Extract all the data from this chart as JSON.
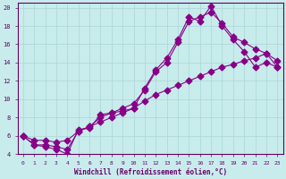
{
  "xlabel": "Windchill (Refroidissement éolien,°C)",
  "bg_color": "#c8ecec",
  "line_color": "#880088",
  "grid_color": "#b0d8d8",
  "xlim": [
    -0.5,
    23.5
  ],
  "ylim": [
    4,
    20.5
  ],
  "xticks": [
    0,
    1,
    2,
    3,
    4,
    5,
    6,
    7,
    8,
    9,
    10,
    11,
    12,
    13,
    14,
    15,
    16,
    17,
    18,
    19,
    20,
    21,
    22,
    23
  ],
  "yticks": [
    4,
    6,
    8,
    10,
    12,
    14,
    16,
    18,
    20
  ],
  "line1_x": [
    0,
    1,
    2,
    3,
    4,
    5,
    6,
    7,
    8,
    9,
    10,
    11,
    12,
    13,
    14,
    15,
    16,
    17,
    18,
    19,
    20,
    21,
    22,
    23
  ],
  "line1_y": [
    6.0,
    5.0,
    4.8,
    4.5,
    4.0,
    6.7,
    6.8,
    8.3,
    8.5,
    8.7,
    9.0,
    11.2,
    13.2,
    14.5,
    16.5,
    19.0,
    18.5,
    20.2,
    18.0,
    16.5,
    15.2,
    13.5,
    14.0,
    13.5
  ],
  "line2_x": [
    0,
    1,
    2,
    3,
    4,
    5,
    6,
    7,
    8,
    9,
    10,
    11,
    12,
    13,
    14,
    15,
    16,
    17,
    18,
    19,
    20,
    21,
    22,
    23
  ],
  "line2_y": [
    6.0,
    5.0,
    5.0,
    4.8,
    4.5,
    6.5,
    7.0,
    8.0,
    8.5,
    9.0,
    9.5,
    11.0,
    13.0,
    14.0,
    16.2,
    18.5,
    19.0,
    19.5,
    18.3,
    16.8,
    16.2,
    15.5,
    15.0,
    14.2
  ],
  "line3_x": [
    0,
    1,
    2,
    3,
    4,
    5,
    6,
    7,
    8,
    9,
    10,
    11,
    12,
    13,
    14,
    15,
    16,
    17,
    18,
    19,
    20,
    21,
    22,
    23
  ],
  "line3_y": [
    6.0,
    5.5,
    5.5,
    5.3,
    5.5,
    6.5,
    7.0,
    7.5,
    8.0,
    8.5,
    9.0,
    9.8,
    10.5,
    11.0,
    11.5,
    12.0,
    12.5,
    13.0,
    13.5,
    13.8,
    14.2,
    14.5,
    15.0,
    13.5
  ]
}
